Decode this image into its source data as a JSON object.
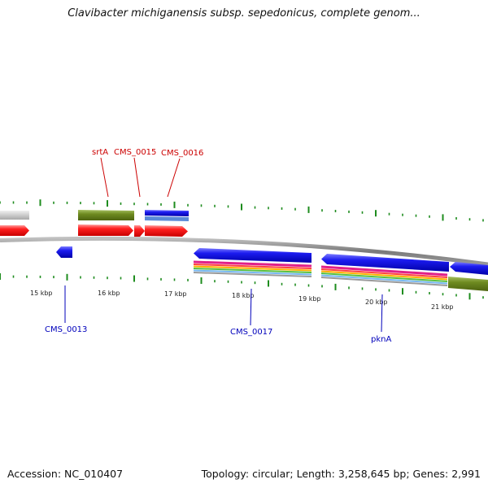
{
  "title": "Clavibacter michiganensis subsp. sepedonicus, complete genom...",
  "footer": {
    "accession": "Accession: NC_010407",
    "summary": "Topology: circular; Length: 3,258,645 bp; Genes: 2,991"
  },
  "colors": {
    "backbone": "#8a8a8a",
    "tick": "#1e8c1e",
    "label_forward": "#cc0000",
    "label_reverse": "#0000bb",
    "cds_forward": "#ff1010",
    "cds_reverse": "#1c1cf0",
    "gene_band": "#6e8a20",
    "rna_band": "#4a7fd0",
    "neutral_band": "#c8c8c8"
  },
  "scale_ticks": [
    "15 kbp",
    "16 kbp",
    "17 kbp",
    "18 kbp",
    "19 kbp",
    "20 kbp",
    "21 kbp"
  ],
  "gene_labels": {
    "forward": [
      "srtA",
      "CMS_0015",
      "CMS_0016"
    ],
    "reverse": [
      "CMS_0013",
      "CMS_0017",
      "pknA"
    ]
  }
}
